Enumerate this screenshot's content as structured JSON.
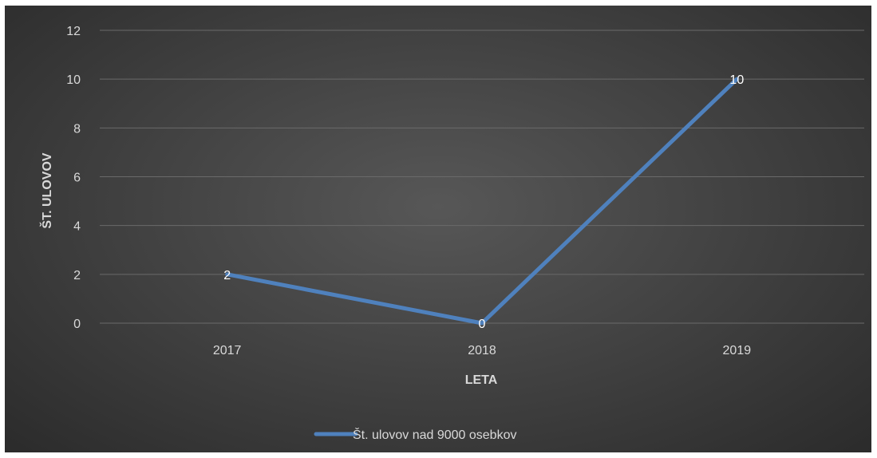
{
  "chart_data": {
    "type": "line",
    "categories": [
      "2017",
      "2018",
      "2019"
    ],
    "series": [
      {
        "name": "Št. ulovov nad 9000 osebkov",
        "values": [
          2,
          0,
          10
        ],
        "color": "#4f81bd"
      }
    ],
    "data_labels": [
      "2",
      "0",
      "10"
    ],
    "y_ticks": [
      "0",
      "2",
      "4",
      "6",
      "8",
      "10",
      "12"
    ],
    "ylim": [
      0,
      12
    ],
    "xlabel": "LETA",
    "ylabel": "ŠT. ULOVOV",
    "grid": true,
    "legend_position": "bottom",
    "background": "#3f3f3f"
  }
}
